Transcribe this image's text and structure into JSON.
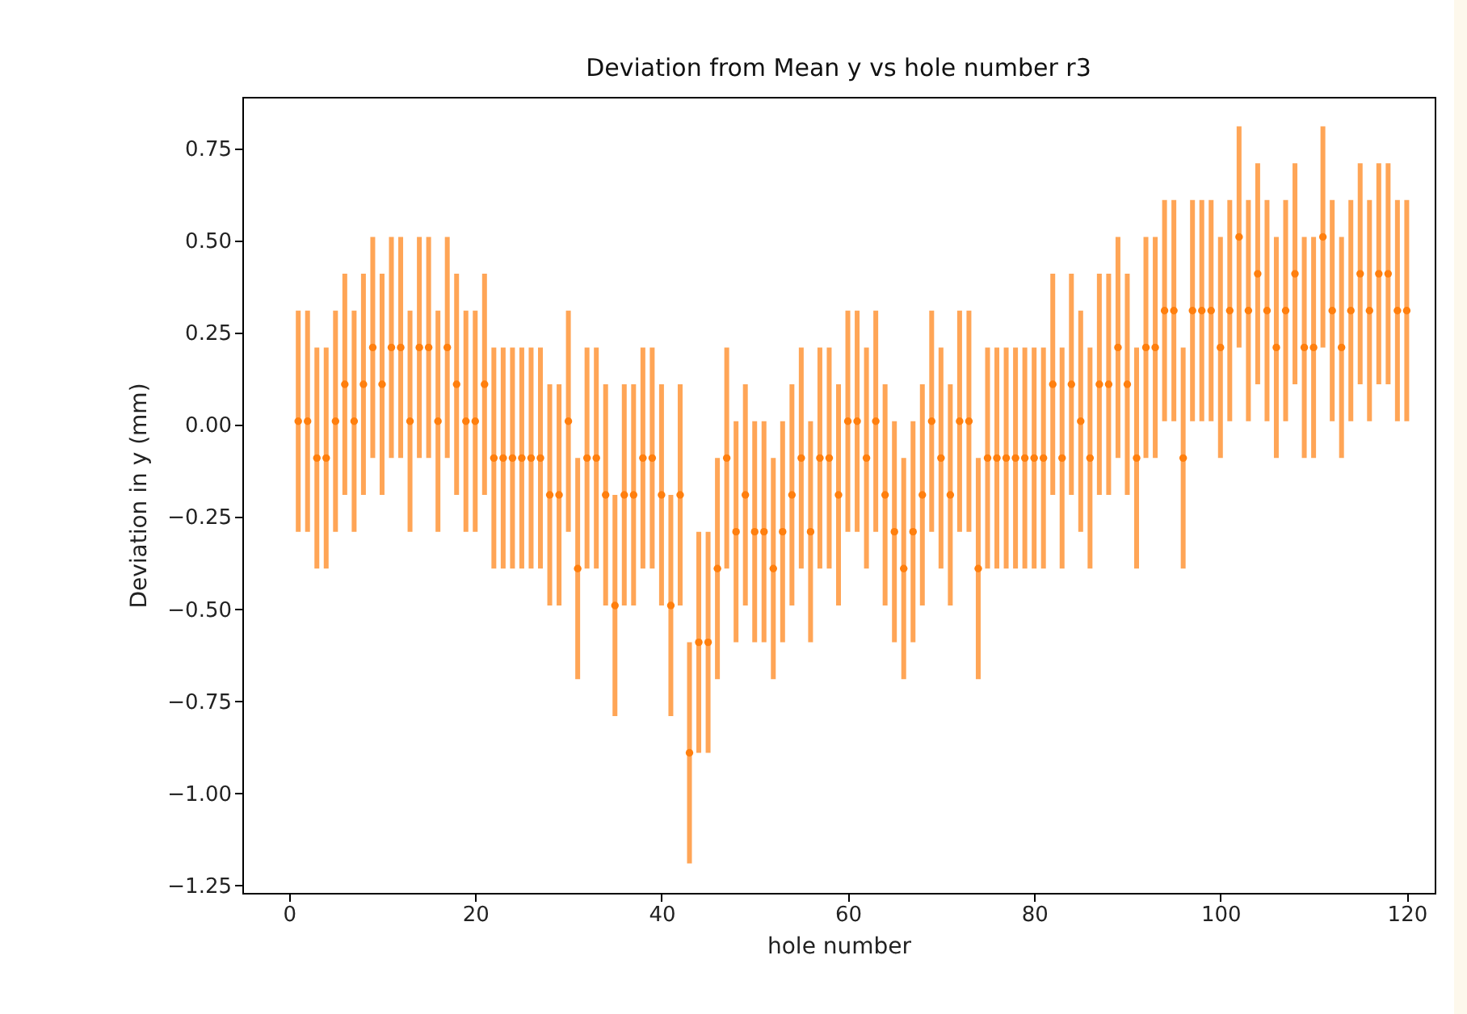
{
  "chart_data": {
    "type": "scatter",
    "title": "Deviation from Mean y vs hole number r3",
    "xlabel": "hole number",
    "ylabel": "Deviation in y (mm)",
    "x": [
      1,
      2,
      3,
      4,
      5,
      6,
      7,
      8,
      9,
      10,
      11,
      12,
      13,
      14,
      15,
      16,
      17,
      18,
      19,
      20,
      21,
      22,
      23,
      24,
      25,
      26,
      27,
      28,
      29,
      30,
      31,
      32,
      33,
      34,
      35,
      36,
      37,
      38,
      39,
      40,
      41,
      42,
      43,
      44,
      45,
      46,
      47,
      48,
      49,
      50,
      51,
      52,
      53,
      54,
      55,
      56,
      57,
      58,
      59,
      60,
      61,
      62,
      63,
      64,
      65,
      66,
      67,
      68,
      69,
      70,
      71,
      72,
      73,
      74,
      75,
      76,
      77,
      78,
      79,
      80,
      81,
      82,
      83,
      84,
      85,
      86,
      87,
      88,
      89,
      90,
      91,
      92,
      93,
      94,
      95,
      96,
      97,
      98,
      99,
      100,
      101,
      102,
      103,
      104,
      105,
      106,
      107,
      108,
      109,
      110,
      111,
      112,
      113,
      114,
      115,
      116,
      117,
      118,
      119,
      120
    ],
    "series": [
      {
        "color": "#ff7f0e",
        "values": [
          0.01,
          0.01,
          -0.09,
          -0.09,
          0.01,
          0.11,
          0.01,
          0.11,
          0.21,
          0.11,
          0.21,
          0.21,
          0.01,
          0.21,
          0.21,
          0.01,
          0.21,
          0.11,
          0.01,
          0.01,
          0.11,
          -0.09,
          -0.09,
          -0.09,
          -0.09,
          -0.09,
          -0.09,
          -0.19,
          -0.19,
          0.01,
          -0.39,
          -0.09,
          -0.09,
          -0.19,
          -0.49,
          -0.19,
          -0.19,
          -0.09,
          -0.09,
          -0.19,
          -0.49,
          -0.19,
          -0.89,
          -0.59,
          -0.59,
          -0.39,
          -0.09,
          -0.29,
          -0.19,
          -0.29,
          -0.29,
          -0.39,
          -0.29,
          -0.19,
          -0.09,
          -0.29,
          -0.09,
          -0.09,
          -0.19,
          0.01,
          0.01,
          -0.09,
          0.01,
          -0.19,
          -0.29,
          -0.39,
          -0.29,
          -0.19,
          0.01,
          -0.09,
          -0.19,
          0.01,
          0.01,
          -0.39,
          -0.09,
          -0.09,
          -0.09,
          -0.09,
          -0.09,
          -0.09,
          -0.09,
          0.11,
          -0.09,
          0.11,
          0.01,
          -0.09,
          0.11,
          0.11,
          0.21,
          0.11,
          -0.09,
          0.21,
          0.21,
          0.31,
          0.31,
          -0.09,
          0.31,
          0.31,
          0.31,
          0.21,
          0.31,
          0.51,
          0.31,
          0.41,
          0.31,
          0.21,
          0.31,
          0.41,
          0.21,
          0.21,
          0.51,
          0.31,
          0.21,
          0.31,
          0.41,
          0.31,
          0.41,
          0.41,
          0.31,
          0.31
        ],
        "errors": [
          0.3,
          0.3,
          0.3,
          0.3,
          0.3,
          0.3,
          0.3,
          0.3,
          0.3,
          0.3,
          0.3,
          0.3,
          0.3,
          0.3,
          0.3,
          0.3,
          0.3,
          0.3,
          0.3,
          0.3,
          0.3,
          0.3,
          0.3,
          0.3,
          0.3,
          0.3,
          0.3,
          0.3,
          0.3,
          0.3,
          0.3,
          0.3,
          0.3,
          0.3,
          0.3,
          0.3,
          0.3,
          0.3,
          0.3,
          0.3,
          0.3,
          0.3,
          0.3,
          0.3,
          0.3,
          0.3,
          0.3,
          0.3,
          0.3,
          0.3,
          0.3,
          0.3,
          0.3,
          0.3,
          0.3,
          0.3,
          0.3,
          0.3,
          0.3,
          0.3,
          0.3,
          0.3,
          0.3,
          0.3,
          0.3,
          0.3,
          0.3,
          0.3,
          0.3,
          0.3,
          0.3,
          0.3,
          0.3,
          0.3,
          0.3,
          0.3,
          0.3,
          0.3,
          0.3,
          0.3,
          0.3,
          0.3,
          0.3,
          0.3,
          0.3,
          0.3,
          0.3,
          0.3,
          0.3,
          0.3,
          0.3,
          0.3,
          0.3,
          0.3,
          0.3,
          0.3,
          0.3,
          0.3,
          0.3,
          0.3,
          0.3,
          0.3,
          0.3,
          0.3,
          0.3,
          0.3,
          0.3,
          0.3,
          0.3,
          0.3,
          0.3,
          0.3,
          0.3,
          0.3,
          0.3,
          0.3,
          0.3,
          0.3,
          0.3,
          0.3
        ]
      }
    ],
    "xlim": [
      -5,
      123
    ],
    "xticks": [
      0,
      20,
      40,
      60,
      80,
      100,
      120
    ],
    "ylim": [
      -1.27,
      0.89
    ],
    "yticks": [
      {
        "value": -1.25,
        "label": "−1.25"
      },
      {
        "value": -1,
        "label": "−1.00"
      },
      {
        "value": -0.75,
        "label": "−0.75"
      },
      {
        "value": -0.5,
        "label": "−0.50"
      },
      {
        "value": -0.25,
        "label": "−0.25"
      },
      {
        "value": 0,
        "label": "0.00"
      },
      {
        "value": 0.25,
        "label": "0.25"
      },
      {
        "value": 0.5,
        "label": "0.50"
      },
      {
        "value": 0.75,
        "label": "0.75"
      }
    ],
    "marker": "circle"
  }
}
